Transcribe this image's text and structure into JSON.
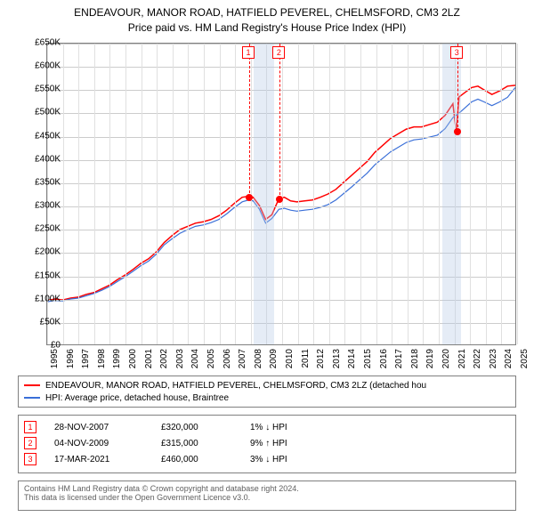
{
  "title": {
    "line1": "ENDEAVOUR, MANOR ROAD, HATFIELD PEVEREL, CHELMSFORD, CM3 2LZ",
    "line2": "Price paid vs. HM Land Registry's House Price Index (HPI)"
  },
  "chart": {
    "type": "line",
    "background_color": "#ffffff",
    "grid_color": "#cccccc",
    "border_color": "#808080",
    "y": {
      "min": 0,
      "max": 650000,
      "tick_step": 50000,
      "tick_labels": [
        "£0",
        "£50K",
        "£100K",
        "£150K",
        "£200K",
        "£250K",
        "£300K",
        "£350K",
        "£400K",
        "£450K",
        "£500K",
        "£550K",
        "£600K",
        "£650K"
      ]
    },
    "x": {
      "min": 1995,
      "max": 2025,
      "ticks": [
        1995,
        1996,
        1997,
        1998,
        1999,
        2000,
        2001,
        2002,
        2003,
        2004,
        2005,
        2006,
        2007,
        2008,
        2009,
        2010,
        2011,
        2012,
        2013,
        2014,
        2015,
        2016,
        2017,
        2018,
        2019,
        2020,
        2021,
        2022,
        2023,
        2024,
        2025
      ]
    },
    "shade_color": "rgba(180,200,230,0.35)",
    "shade_bands": [
      {
        "start": 2008.2,
        "end": 2009.5
      },
      {
        "start": 2020.2,
        "end": 2021.4
      }
    ],
    "series": [
      {
        "name": "property",
        "color": "#ff0000",
        "line_width": 1.5,
        "points": [
          [
            1995.0,
            95000
          ],
          [
            1995.5,
            98000
          ],
          [
            1996.0,
            96000
          ],
          [
            1996.5,
            100000
          ],
          [
            1997.0,
            102000
          ],
          [
            1997.5,
            108000
          ],
          [
            1998.0,
            112000
          ],
          [
            1998.5,
            120000
          ],
          [
            1999.0,
            128000
          ],
          [
            1999.5,
            140000
          ],
          [
            2000.0,
            150000
          ],
          [
            2000.5,
            162000
          ],
          [
            2001.0,
            175000
          ],
          [
            2001.5,
            185000
          ],
          [
            2002.0,
            200000
          ],
          [
            2002.5,
            220000
          ],
          [
            2003.0,
            235000
          ],
          [
            2003.5,
            248000
          ],
          [
            2004.0,
            255000
          ],
          [
            2004.5,
            262000
          ],
          [
            2005.0,
            265000
          ],
          [
            2005.5,
            270000
          ],
          [
            2006.0,
            278000
          ],
          [
            2006.5,
            290000
          ],
          [
            2007.0,
            305000
          ],
          [
            2007.5,
            318000
          ],
          [
            2007.9,
            320000
          ],
          [
            2008.2,
            318000
          ],
          [
            2008.6,
            300000
          ],
          [
            2009.0,
            270000
          ],
          [
            2009.4,
            280000
          ],
          [
            2009.85,
            315000
          ],
          [
            2010.2,
            318000
          ],
          [
            2010.6,
            310000
          ],
          [
            2011.0,
            308000
          ],
          [
            2011.5,
            310000
          ],
          [
            2012.0,
            312000
          ],
          [
            2012.5,
            318000
          ],
          [
            2013.0,
            325000
          ],
          [
            2013.5,
            335000
          ],
          [
            2014.0,
            350000
          ],
          [
            2014.5,
            365000
          ],
          [
            2015.0,
            380000
          ],
          [
            2015.5,
            395000
          ],
          [
            2016.0,
            415000
          ],
          [
            2016.5,
            430000
          ],
          [
            2017.0,
            445000
          ],
          [
            2017.5,
            455000
          ],
          [
            2018.0,
            465000
          ],
          [
            2018.5,
            470000
          ],
          [
            2019.0,
            470000
          ],
          [
            2019.5,
            475000
          ],
          [
            2020.0,
            480000
          ],
          [
            2020.5,
            495000
          ],
          [
            2021.0,
            520000
          ],
          [
            2021.21,
            460000
          ],
          [
            2021.4,
            535000
          ],
          [
            2021.8,
            545000
          ],
          [
            2022.2,
            555000
          ],
          [
            2022.6,
            558000
          ],
          [
            2023.0,
            550000
          ],
          [
            2023.5,
            540000
          ],
          [
            2024.0,
            548000
          ],
          [
            2024.5,
            558000
          ],
          [
            2025.0,
            560000
          ]
        ]
      },
      {
        "name": "hpi",
        "color": "#3a6fd8",
        "line_width": 1.2,
        "points": [
          [
            1995.0,
            92000
          ],
          [
            1995.5,
            95000
          ],
          [
            1996.0,
            94000
          ],
          [
            1996.5,
            98000
          ],
          [
            1997.0,
            100000
          ],
          [
            1997.5,
            105000
          ],
          [
            1998.0,
            110000
          ],
          [
            1998.5,
            117000
          ],
          [
            1999.0,
            125000
          ],
          [
            1999.5,
            136000
          ],
          [
            2000.0,
            146000
          ],
          [
            2000.5,
            158000
          ],
          [
            2001.0,
            170000
          ],
          [
            2001.5,
            180000
          ],
          [
            2002.0,
            195000
          ],
          [
            2002.5,
            215000
          ],
          [
            2003.0,
            228000
          ],
          [
            2003.5,
            240000
          ],
          [
            2004.0,
            248000
          ],
          [
            2004.5,
            255000
          ],
          [
            2005.0,
            258000
          ],
          [
            2005.5,
            263000
          ],
          [
            2006.0,
            270000
          ],
          [
            2006.5,
            282000
          ],
          [
            2007.0,
            296000
          ],
          [
            2007.5,
            308000
          ],
          [
            2007.9,
            312000
          ],
          [
            2008.2,
            310000
          ],
          [
            2008.6,
            292000
          ],
          [
            2009.0,
            262000
          ],
          [
            2009.4,
            272000
          ],
          [
            2009.85,
            292000
          ],
          [
            2010.2,
            294000
          ],
          [
            2010.6,
            290000
          ],
          [
            2011.0,
            288000
          ],
          [
            2011.5,
            290000
          ],
          [
            2012.0,
            292000
          ],
          [
            2012.5,
            296000
          ],
          [
            2013.0,
            302000
          ],
          [
            2013.5,
            312000
          ],
          [
            2014.0,
            326000
          ],
          [
            2014.5,
            340000
          ],
          [
            2015.0,
            355000
          ],
          [
            2015.5,
            370000
          ],
          [
            2016.0,
            388000
          ],
          [
            2016.5,
            402000
          ],
          [
            2017.0,
            416000
          ],
          [
            2017.5,
            426000
          ],
          [
            2018.0,
            436000
          ],
          [
            2018.5,
            442000
          ],
          [
            2019.0,
            444000
          ],
          [
            2019.5,
            448000
          ],
          [
            2020.0,
            452000
          ],
          [
            2020.5,
            466000
          ],
          [
            2021.0,
            490000
          ],
          [
            2021.4,
            500000
          ],
          [
            2021.8,
            512000
          ],
          [
            2022.2,
            524000
          ],
          [
            2022.6,
            530000
          ],
          [
            2023.0,
            524000
          ],
          [
            2023.5,
            516000
          ],
          [
            2024.0,
            524000
          ],
          [
            2024.5,
            534000
          ],
          [
            2025.0,
            555000
          ]
        ]
      }
    ],
    "markers": [
      {
        "n": "1",
        "x": 2007.9,
        "y": 320000
      },
      {
        "n": "2",
        "x": 2009.85,
        "y": 315000
      },
      {
        "n": "3",
        "x": 2021.21,
        "y": 460000
      }
    ],
    "dot_color": "#ff0000"
  },
  "legend": {
    "items": [
      {
        "color": "#ff0000",
        "label": "ENDEAVOUR, MANOR ROAD, HATFIELD PEVEREL, CHELMSFORD, CM3 2LZ (detached hou"
      },
      {
        "color": "#3a6fd8",
        "label": "HPI: Average price, detached house, Braintree"
      }
    ]
  },
  "transactions": [
    {
      "n": "1",
      "date": "28-NOV-2007",
      "price": "£320,000",
      "hpi": "1% ↓ HPI"
    },
    {
      "n": "2",
      "date": "04-NOV-2009",
      "price": "£315,000",
      "hpi": "9% ↑ HPI"
    },
    {
      "n": "3",
      "date": "17-MAR-2021",
      "price": "£460,000",
      "hpi": "3% ↓ HPI"
    }
  ],
  "footer": {
    "line1": "Contains HM Land Registry data © Crown copyright and database right 2024.",
    "line2": "This data is licensed under the Open Government Licence v3.0."
  }
}
